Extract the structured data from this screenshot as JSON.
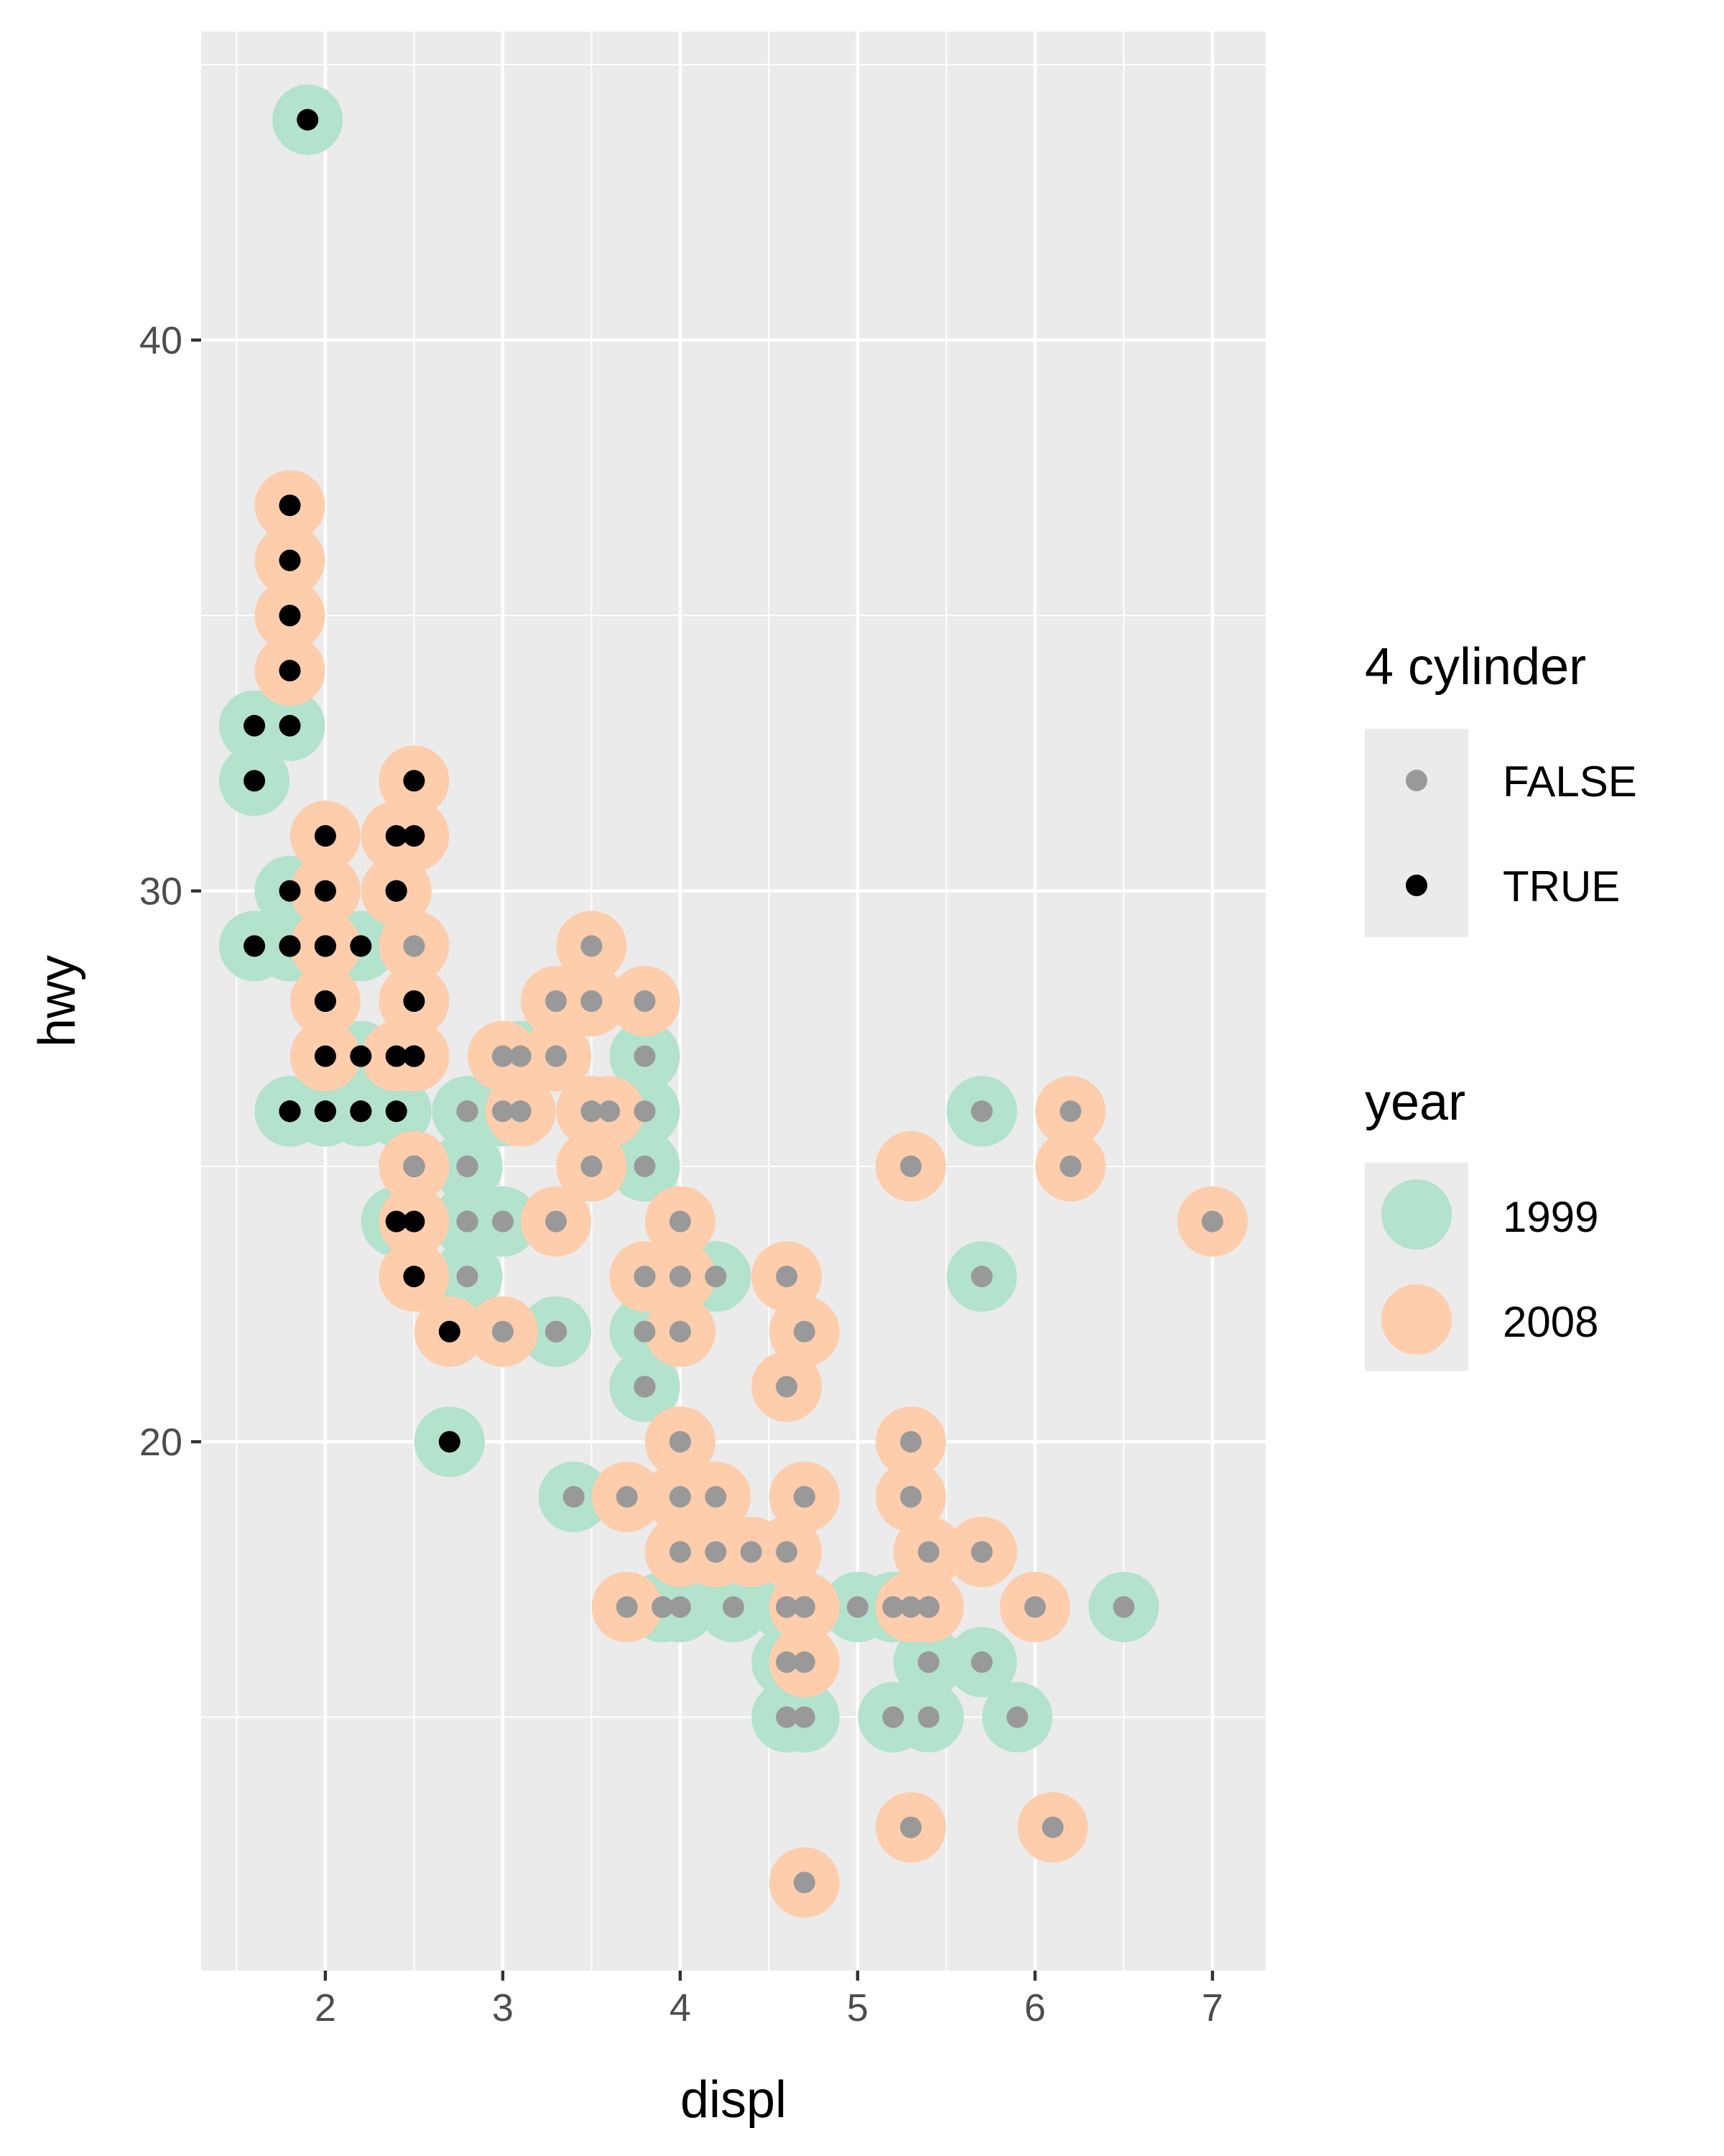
{
  "chart_data": {
    "type": "scatter",
    "xlabel": "displ",
    "ylabel": "hwy",
    "xlim": [
      1.3,
      7.3
    ],
    "ylim": [
      10.4,
      45.6
    ],
    "x_ticks": [
      2,
      3,
      4,
      5,
      6,
      7
    ],
    "y_ticks": [
      20,
      30,
      40
    ],
    "grid": true,
    "legends": [
      {
        "title": "4 cylinder",
        "entries": [
          {
            "label": "FALSE",
            "color": "#999999"
          },
          {
            "label": "TRUE",
            "color": "#000000"
          }
        ]
      },
      {
        "title": "year",
        "entries": [
          {
            "label": "1999",
            "color": "#B3E2CD"
          },
          {
            "label": "2008",
            "color": "#FDCDAC"
          }
        ]
      }
    ],
    "legend_position": "right",
    "colors": {
      "panel": "#EBEBEB",
      "grid": "#FFFFFF",
      "year_1999": "#B3E2CD",
      "year_2008": "#FDCDAC",
      "cyl4_false": "#999999",
      "cyl4_true": "#000000"
    },
    "series": [
      {
        "name": "1999",
        "points": [
          [
            1.8,
            29,
            true
          ],
          [
            1.8,
            29,
            true
          ],
          [
            2.8,
            26,
            false
          ],
          [
            1.8,
            26,
            true
          ],
          [
            2.8,
            25,
            false
          ],
          [
            3.1,
            27,
            false
          ],
          [
            2.8,
            25,
            false
          ],
          [
            2.8,
            24,
            false
          ],
          [
            2.8,
            25,
            false
          ],
          [
            2.8,
            23,
            false
          ],
          [
            4.2,
            23,
            false
          ],
          [
            5.7,
            26,
            false
          ],
          [
            5.7,
            23,
            false
          ],
          [
            4.2,
            23,
            false
          ],
          [
            5.7,
            26,
            false
          ],
          [
            6.5,
            17,
            false
          ],
          [
            2.4,
            24,
            true
          ],
          [
            3.3,
            22,
            false
          ],
          [
            3.3,
            22,
            false
          ],
          [
            3.8,
            22,
            false
          ],
          [
            3.8,
            21,
            false
          ],
          [
            3.8,
            21,
            false
          ],
          [
            3.9,
            17,
            false
          ],
          [
            3.9,
            17,
            false
          ],
          [
            4.7,
            17,
            false
          ],
          [
            4.7,
            17,
            false
          ],
          [
            5.2,
            17,
            false
          ],
          [
            5.2,
            15,
            false
          ],
          [
            5.2,
            17,
            false
          ],
          [
            4.7,
            17,
            false
          ],
          [
            4.6,
            17,
            false
          ],
          [
            5.4,
            17,
            false
          ],
          [
            5.4,
            16,
            false
          ],
          [
            3.9,
            17,
            false
          ],
          [
            4.6,
            16,
            false
          ],
          [
            5.0,
            17,
            false
          ],
          [
            4.6,
            17,
            false
          ],
          [
            5.4,
            17,
            false
          ],
          [
            5.4,
            16,
            false
          ],
          [
            4.6,
            15,
            false
          ],
          [
            5.4,
            15,
            false
          ],
          [
            4.7,
            15,
            false
          ],
          [
            5.7,
            16,
            false
          ],
          [
            5.9,
            15,
            false
          ],
          [
            4.0,
            20,
            false
          ],
          [
            4.7,
            19,
            false
          ],
          [
            4.0,
            17,
            false
          ],
          [
            2.5,
            29,
            false
          ],
          [
            2.8,
            26,
            false
          ],
          [
            2.8,
            26,
            false
          ],
          [
            1.8,
            29,
            true
          ],
          [
            1.8,
            26,
            true
          ],
          [
            2.0,
            26,
            true
          ],
          [
            2.8,
            24,
            false
          ],
          [
            2.2,
            26,
            true
          ],
          [
            2.4,
            26,
            true
          ],
          [
            3.1,
            26,
            false
          ],
          [
            3.0,
            26,
            false
          ],
          [
            3.4,
            19,
            false
          ],
          [
            3.4,
            19,
            false
          ],
          [
            4.3,
            17,
            false
          ],
          [
            2.2,
            27,
            true
          ],
          [
            2.2,
            26,
            true
          ],
          [
            2.5,
            25,
            false
          ],
          [
            2.5,
            27,
            false
          ],
          [
            2.2,
            29,
            true
          ],
          [
            1.8,
            26,
            true
          ],
          [
            1.6,
            33,
            true
          ],
          [
            1.6,
            32,
            true
          ],
          [
            1.6,
            29,
            true
          ],
          [
            1.8,
            30,
            true
          ],
          [
            1.8,
            33,
            true
          ],
          [
            1.9,
            44,
            true
          ],
          [
            2.0,
            26,
            true
          ],
          [
            2.0,
            29,
            true
          ],
          [
            2.7,
            20,
            true
          ],
          [
            3.0,
            24,
            false
          ],
          [
            3.8,
            25,
            false
          ],
          [
            3.8,
            26,
            false
          ],
          [
            3.8,
            27,
            false
          ]
        ]
      },
      {
        "name": "2008",
        "points": [
          [
            2.0,
            31,
            true
          ],
          [
            2.0,
            30,
            true
          ],
          [
            3.1,
            26,
            false
          ],
          [
            2.0,
            28,
            true
          ],
          [
            3.1,
            26,
            false
          ],
          [
            4.2,
            19,
            false
          ],
          [
            5.3,
            13,
            false
          ],
          [
            5.3,
            17,
            false
          ],
          [
            5.3,
            20,
            false
          ],
          [
            6.2,
            26,
            false
          ],
          [
            6.2,
            25,
            false
          ],
          [
            7.0,
            24,
            false
          ],
          [
            5.3,
            25,
            false
          ],
          [
            2.4,
            30,
            true
          ],
          [
            3.5,
            26,
            false
          ],
          [
            3.0,
            27,
            false
          ],
          [
            3.7,
            17,
            false
          ],
          [
            4.7,
            19,
            false
          ],
          [
            4.7,
            19,
            false
          ],
          [
            5.7,
            18,
            false
          ],
          [
            6.1,
            13,
            false
          ],
          [
            5.3,
            19,
            false
          ],
          [
            4.4,
            18,
            false
          ],
          [
            4.7,
            17,
            false
          ],
          [
            5.7,
            18,
            false
          ],
          [
            5.4,
            18,
            false
          ],
          [
            6.0,
            17,
            false
          ],
          [
            4.0,
            19,
            false
          ],
          [
            4.6,
            18,
            false
          ],
          [
            5.4,
            17,
            false
          ],
          [
            4.0,
            20,
            false
          ],
          [
            4.7,
            22,
            false
          ],
          [
            4.0,
            18,
            false
          ],
          [
            2.4,
            31,
            true
          ],
          [
            3.0,
            27,
            false
          ],
          [
            3.3,
            24,
            false
          ],
          [
            4.0,
            24,
            false
          ],
          [
            3.5,
            28,
            false
          ],
          [
            3.5,
            26,
            false
          ],
          [
            3.7,
            19,
            false
          ],
          [
            4.6,
            21,
            false
          ],
          [
            5.4,
            17,
            false
          ],
          [
            4.7,
            12,
            false
          ],
          [
            4.7,
            16,
            false
          ],
          [
            4.2,
            18,
            false
          ],
          [
            2.4,
            30,
            true
          ],
          [
            2.5,
            27,
            true
          ],
          [
            2.5,
            24,
            true
          ],
          [
            3.5,
            28,
            false
          ],
          [
            3.8,
            23,
            false
          ],
          [
            4.0,
            22,
            false
          ],
          [
            3.3,
            28,
            false
          ],
          [
            3.5,
            29,
            false
          ],
          [
            3.8,
            28,
            false
          ],
          [
            3.5,
            25,
            false
          ],
          [
            3.3,
            27,
            false
          ],
          [
            4.6,
            23,
            false
          ],
          [
            1.8,
            36,
            true
          ],
          [
            1.8,
            37,
            true
          ],
          [
            1.8,
            35,
            true
          ],
          [
            1.8,
            34,
            true
          ],
          [
            2.0,
            29,
            true
          ],
          [
            2.0,
            28,
            true
          ],
          [
            2.5,
            32,
            true
          ],
          [
            2.5,
            31,
            true
          ],
          [
            2.5,
            27,
            true
          ],
          [
            2.5,
            25,
            true
          ],
          [
            2.5,
            28,
            true
          ],
          [
            2.5,
            23,
            true
          ],
          [
            3.0,
            22,
            false
          ],
          [
            2.0,
            27,
            true
          ],
          [
            2.0,
            29,
            true
          ],
          [
            2.7,
            22,
            true
          ],
          [
            4.0,
            23,
            false
          ],
          [
            2.5,
            29,
            false
          ],
          [
            3.6,
            26,
            false
          ],
          [
            3.8,
            23,
            false
          ],
          [
            2.5,
            25,
            false
          ],
          [
            2.4,
            27,
            true
          ]
        ]
      }
    ]
  }
}
